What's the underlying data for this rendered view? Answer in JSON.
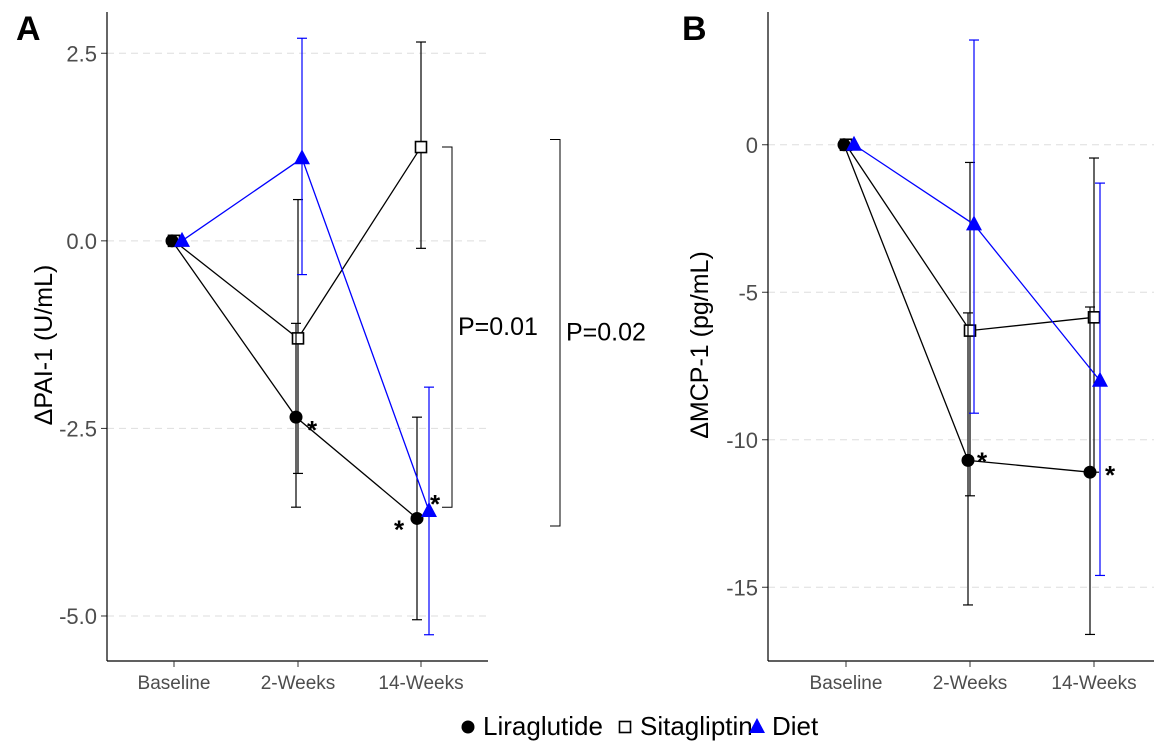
{
  "chart_data": [
    {
      "panel_label": "A",
      "type": "line",
      "ylabel": "ΔPAI-1 (U/mL)",
      "xlabel": "",
      "categories": [
        "Baseline",
        "2-Weeks",
        "14-Weeks"
      ],
      "ylim": [
        -5.6,
        3.05
      ],
      "yticks": [
        2.5,
        0.0,
        -2.5,
        -5.0
      ],
      "ytick_labels": [
        "2.5",
        "0.0",
        "-2.5",
        "-5.0"
      ],
      "grid": "horizontal dashed",
      "series": [
        {
          "name": "Liraglutide",
          "color": "#000000",
          "marker": "filled-circle",
          "values": [
            0.0,
            -2.35,
            -3.7
          ],
          "err_low": [
            0.0,
            -3.55,
            -5.05
          ],
          "err_high": [
            0.0,
            -1.1,
            -2.35
          ],
          "stars": [
            false,
            true,
            true
          ]
        },
        {
          "name": "Sitagliptin",
          "color": "#000000",
          "marker": "open-square",
          "values": [
            0.0,
            -1.3,
            1.25
          ],
          "err_low": [
            0.0,
            -3.1,
            -0.1
          ],
          "err_high": [
            0.0,
            0.55,
            2.65
          ],
          "stars": [
            false,
            false,
            false
          ]
        },
        {
          "name": "Diet",
          "color": "#0000ff",
          "marker": "filled-triangle",
          "values": [
            0.0,
            1.1,
            -3.6
          ],
          "err_low": [
            0.0,
            -0.45,
            -5.25
          ],
          "err_high": [
            0.0,
            2.7,
            -1.95
          ],
          "stars": [
            false,
            false,
            true
          ]
        }
      ],
      "annotations": [
        {
          "text": "P=0.01",
          "from": 1.25,
          "to": -3.55
        },
        {
          "text": "P=0.02",
          "from": 1.35,
          "to": -3.8
        }
      ],
      "star_text": "*"
    },
    {
      "panel_label": "B",
      "type": "line",
      "ylabel": "ΔMCP-1 (pg/mL)",
      "xlabel": "",
      "categories": [
        "Baseline",
        "2-Weeks",
        "14-Weeks"
      ],
      "ylim": [
        -17.5,
        4.5
      ],
      "yticks": [
        0,
        -5,
        -10,
        -15
      ],
      "ytick_labels": [
        "0",
        "-5",
        "-10",
        "-15"
      ],
      "grid": "horizontal dashed",
      "series": [
        {
          "name": "Liraglutide",
          "color": "#000000",
          "marker": "filled-circle",
          "values": [
            0.0,
            -10.7,
            -11.1
          ],
          "err_low": [
            0.0,
            -15.6,
            -16.6
          ],
          "err_high": [
            0.0,
            -5.7,
            -5.5
          ],
          "stars": [
            false,
            true,
            true
          ]
        },
        {
          "name": "Sitagliptin",
          "color": "#000000",
          "marker": "open-square",
          "values": [
            0.0,
            -6.3,
            -5.85
          ],
          "err_low": [
            0.0,
            -11.9,
            -11.1
          ],
          "err_high": [
            0.0,
            -0.6,
            -0.45
          ],
          "stars": [
            false,
            false,
            false
          ]
        },
        {
          "name": "Diet",
          "color": "#0000ff",
          "marker": "filled-triangle",
          "values": [
            0.0,
            -2.7,
            -8.0
          ],
          "err_low": [
            0.0,
            -9.1,
            -14.6
          ],
          "err_high": [
            0.0,
            3.55,
            -1.3
          ],
          "stars": [
            false,
            false,
            false
          ]
        }
      ],
      "annotations": [],
      "star_text": "*"
    }
  ],
  "legend": {
    "position": "bottom",
    "items": [
      {
        "label": "Liraglutide",
        "marker": "filled-circle",
        "color": "#000000"
      },
      {
        "label": "Sitagliptin",
        "marker": "open-square",
        "color": "#000000"
      },
      {
        "label": "Diet",
        "marker": "filled-triangle",
        "color": "#0000ff"
      }
    ]
  }
}
